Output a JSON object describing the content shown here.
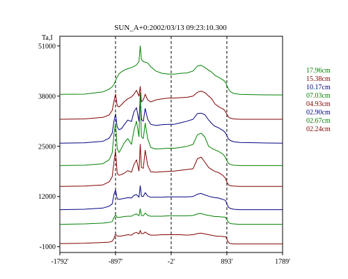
{
  "chart_data": {
    "type": "line",
    "title": "SUN_A+0:2002/03/13 09:23:10.300",
    "ylabel": "Ta,I",
    "xlabel": "",
    "xlim": [
      -1792,
      1789
    ],
    "ylim": [
      -2500,
      53500
    ],
    "x_ticks": [
      {
        "value": -1792,
        "label": "-1792'"
      },
      {
        "value": -897,
        "label": "-897'"
      },
      {
        "value": -2,
        "label": "-2'"
      },
      {
        "value": 893,
        "label": "893'"
      },
      {
        "value": 1789,
        "label": "1789'"
      }
    ],
    "y_ticks": [
      {
        "value": 51000,
        "label": "51000"
      },
      {
        "value": 38000,
        "label": "38000"
      },
      {
        "value": 25000,
        "label": "25000"
      },
      {
        "value": 12000,
        "label": "12000"
      },
      {
        "value": -1000,
        "label": "-1000"
      }
    ],
    "vlines": [
      -897,
      -2,
      893
    ],
    "grid": false,
    "legend_position": "right",
    "x": [
      -1792,
      -1400,
      -1100,
      -1000,
      -950,
      -920,
      -897,
      -870,
      -840,
      -800,
      -760,
      -700,
      -640,
      -600,
      -560,
      -520,
      -500,
      -480,
      -450,
      -420,
      -380,
      -330,
      -250,
      -150,
      -50,
      50,
      150,
      250,
      350,
      420,
      480,
      540,
      600,
      640,
      670,
      700,
      760,
      800,
      840,
      870,
      893,
      920,
      950,
      1000,
      1100,
      1400,
      1789
    ],
    "series": [
      {
        "name": "17.96cm",
        "color": "#008000",
        "values": [
          38450,
          38500,
          39100,
          39800,
          40400,
          41100,
          42000,
          43000,
          43800,
          44300,
          44700,
          45100,
          45400,
          45700,
          46100,
          47000,
          51000,
          47500,
          46900,
          46800,
          46600,
          45600,
          44500,
          43900,
          43700,
          43700,
          43900,
          44000,
          44500,
          45800,
          46000,
          45400,
          44700,
          44300,
          43900,
          43400,
          42900,
          42500,
          42100,
          41600,
          40800,
          39800,
          39200,
          38700,
          38450,
          38350,
          38300
        ]
      },
      {
        "name": "15.38cm",
        "color": "#800000",
        "values": [
          32000,
          32100,
          32500,
          33100,
          34300,
          36800,
          38500,
          35500,
          35200,
          35800,
          36500,
          37300,
          37800,
          38500,
          39500,
          38000,
          40500,
          36500,
          37000,
          38500,
          37000,
          36500,
          37000,
          37300,
          37500,
          37500,
          37600,
          37700,
          38000,
          39000,
          39300,
          38900,
          38000,
          37500,
          36800,
          36000,
          35300,
          34900,
          34600,
          34000,
          33300,
          32600,
          32300,
          32100,
          32000,
          32000,
          32000
        ]
      },
      {
        "name": "10.17cm",
        "color": "#000080",
        "values": [
          25800,
          25900,
          26300,
          27100,
          28400,
          31700,
          33400,
          30000,
          29300,
          29600,
          30500,
          31800,
          31400,
          34000,
          35000,
          31500,
          38000,
          32000,
          31500,
          34800,
          32000,
          30700,
          30400,
          30600,
          30700,
          30700,
          31100,
          31500,
          32000,
          33500,
          33600,
          33200,
          31800,
          31100,
          30600,
          30200,
          29800,
          29400,
          29000,
          28500,
          27800,
          26900,
          26500,
          26200,
          26000,
          25900,
          25800
        ]
      },
      {
        "name": "07.03cm",
        "color": "#008000",
        "values": [
          20000,
          20100,
          20500,
          21500,
          23300,
          28500,
          31000,
          24400,
          23400,
          24500,
          25800,
          27000,
          25500,
          29200,
          31500,
          27500,
          38800,
          27500,
          27000,
          31000,
          27000,
          24700,
          24300,
          24400,
          24500,
          24500,
          24700,
          25000,
          25500,
          28000,
          28400,
          27400,
          25000,
          24600,
          24300,
          24100,
          23700,
          23300,
          22800,
          22100,
          21300,
          20600,
          20300,
          20100,
          20000,
          20000,
          20000
        ]
      },
      {
        "name": "04.93cm",
        "color": "#800000",
        "values": [
          14600,
          14700,
          15000,
          15800,
          17100,
          21200,
          23800,
          18000,
          17500,
          17700,
          18000,
          18700,
          18300,
          20300,
          21500,
          18600,
          25500,
          19500,
          19300,
          24000,
          20000,
          18400,
          18300,
          18400,
          18500,
          18600,
          18800,
          19000,
          19200,
          21800,
          22200,
          20900,
          19500,
          19100,
          18800,
          18500,
          18200,
          17800,
          17300,
          16700,
          15800,
          15000,
          14800,
          14700,
          14600,
          14600,
          14600
        ]
      },
      {
        "name": "02.90cm",
        "color": "#000080",
        "values": [
          8600,
          8700,
          9000,
          9500,
          10100,
          12700,
          13700,
          11400,
          11300,
          11400,
          11500,
          11700,
          11600,
          12300,
          12500,
          11800,
          14800,
          12100,
          12000,
          13000,
          12100,
          11800,
          11800,
          11800,
          11900,
          11900,
          11900,
          11900,
          12000,
          12600,
          12800,
          12400,
          12100,
          11900,
          11800,
          11700,
          11600,
          11400,
          11200,
          11000,
          10100,
          9200,
          8900,
          8700,
          8600,
          8600,
          8600
        ]
      },
      {
        "name": "02.67cm",
        "color": "#008000",
        "values": [
          4800,
          4900,
          5100,
          5300,
          5500,
          6600,
          7200,
          6600,
          6600,
          6700,
          6800,
          6900,
          6900,
          7300,
          7500,
          7000,
          8800,
          7100,
          7000,
          7700,
          7100,
          6900,
          6900,
          6900,
          7000,
          7000,
          7000,
          7000,
          7100,
          7500,
          7600,
          7300,
          7100,
          7000,
          6900,
          6800,
          6800,
          6700,
          6700,
          6600,
          6000,
          5300,
          5000,
          4900,
          4800,
          4800,
          4800
        ]
      },
      {
        "name": "02.24cm",
        "color": "#800000",
        "values": [
          -200,
          -100,
          100,
          200,
          400,
          1200,
          2200,
          1800,
          1700,
          1800,
          1900,
          2100,
          2000,
          2500,
          2700,
          2300,
          3200,
          2400,
          2400,
          2800,
          2300,
          2000,
          2000,
          2100,
          2100,
          2100,
          2100,
          2000,
          2100,
          2400,
          2500,
          2300,
          2100,
          2000,
          1900,
          1800,
          1700,
          1700,
          1600,
          1600,
          1000,
          100,
          -200,
          -300,
          -300,
          -300,
          -300
        ]
      }
    ]
  }
}
